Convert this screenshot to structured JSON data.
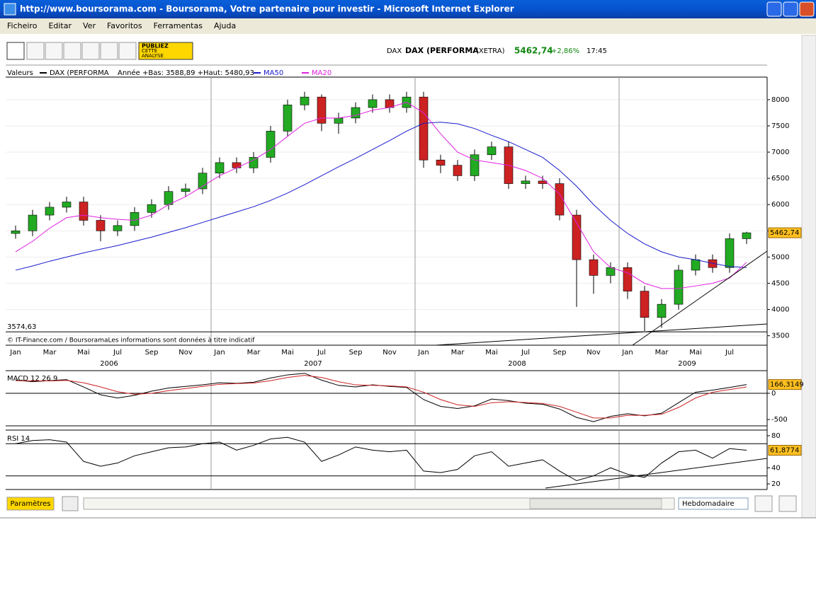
{
  "window": {
    "title": "http://www.boursorama.com - Boursorama, Votre partenaire pour investir - Microsoft Internet Explorer",
    "menu": [
      "Ficheiro",
      "Editar",
      "Ver",
      "Favoritos",
      "Ferramentas",
      "Ajuda"
    ]
  },
  "toolbar": {
    "publish": [
      "PUBLIEZ",
      "CETTE",
      "ANALYSE"
    ]
  },
  "quote": {
    "market": "DAX",
    "name": "DAX (PERFORMA",
    "exchange": "(XETRA)",
    "change": "+2,86%",
    "time": "17:45"
  },
  "footer": {
    "settings": "Paramètres",
    "period": "Hebdomadaire"
  },
  "chart_data": [
    {
      "type": "candlestick",
      "legend_title": "Valeurs",
      "name": "DAX (PERFORMA",
      "range_text": "Année +Bas: 3588,89 +Haut: 5480,93",
      "copyright": "© IT-Finance.com / BoursoramaLes informations sont données à titre indicatif",
      "x_labels": [
        "Jan",
        "Mar",
        "Mai",
        "Jul",
        "Sep",
        "Nov",
        "Jan",
        "Mar",
        "Mai",
        "Jul",
        "Sep",
        "Nov",
        "Jan",
        "Mar",
        "Mai",
        "Jul",
        "Sep",
        "Nov",
        "Jan",
        "Mar",
        "Mai",
        "Jul"
      ],
      "years": [
        "2006",
        "2007",
        "2008",
        "2009"
      ],
      "open": [
        5450,
        5500,
        5800,
        5950,
        6050,
        5700,
        5500,
        5600,
        5850,
        6000,
        6250,
        6300,
        6600,
        6800,
        6700,
        6900,
        7400,
        7900,
        8050,
        7550,
        7650,
        7850,
        8000,
        7850,
        8050,
        6850,
        6750,
        6550,
        6950,
        7100,
        6400,
        6450,
        6400,
        5800,
        4950,
        4650,
        4800,
        4350,
        3850,
        4100,
        4750,
        4950,
        4800,
        5350
      ],
      "high": [
        5600,
        5900,
        6050,
        6150,
        6150,
        5800,
        5700,
        5950,
        6100,
        6350,
        6400,
        6700,
        6900,
        6900,
        7000,
        7500,
        8000,
        8150,
        8100,
        7750,
        7950,
        8100,
        8100,
        8150,
        8150,
        6950,
        6850,
        7050,
        7200,
        7200,
        6550,
        6550,
        6500,
        5900,
        5050,
        4900,
        4900,
        4450,
        4200,
        4850,
        5050,
        5050,
        5450,
        5480
      ],
      "low": [
        5350,
        5400,
        5700,
        5850,
        5600,
        5300,
        5400,
        5500,
        5750,
        5900,
        6150,
        6200,
        6500,
        6600,
        6600,
        6800,
        7300,
        7800,
        7400,
        7350,
        7550,
        7750,
        7750,
        7750,
        6700,
        6600,
        6450,
        6450,
        6850,
        6300,
        6300,
        6300,
        5700,
        4050,
        4300,
        4500,
        4200,
        3590,
        3650,
        4000,
        4650,
        4700,
        4700,
        5250
      ],
      "close": [
        5500,
        5800,
        5950,
        6050,
        5700,
        5500,
        5600,
        5850,
        6000,
        6250,
        6300,
        6600,
        6800,
        6700,
        6900,
        7400,
        7900,
        8050,
        7550,
        7650,
        7850,
        8000,
        7850,
        8050,
        6850,
        6750,
        6550,
        6950,
        7100,
        6400,
        6450,
        6400,
        5800,
        4950,
        4650,
        4800,
        4350,
        3850,
        4100,
        4750,
        4950,
        4800,
        5350,
        5462.74
      ],
      "up_color": "#22aa22",
      "down_color": "#cc2222",
      "series": [
        {
          "name": "MA50",
          "color": "#1a1acc",
          "values": [
            4750,
            4830,
            4920,
            5000,
            5080,
            5150,
            5220,
            5300,
            5380,
            5470,
            5560,
            5660,
            5760,
            5860,
            5960,
            6080,
            6220,
            6380,
            6550,
            6720,
            6880,
            7050,
            7220,
            7400,
            7550,
            7570,
            7540,
            7450,
            7320,
            7200,
            7050,
            6900,
            6650,
            6350,
            6000,
            5700,
            5450,
            5250,
            5100,
            5000,
            4950,
            4880,
            4820,
            4800
          ]
        },
        {
          "name": "MA20",
          "color": "#e020e0",
          "values": [
            5100,
            5300,
            5550,
            5750,
            5800,
            5750,
            5720,
            5700,
            5800,
            6000,
            6150,
            6350,
            6550,
            6700,
            6850,
            7050,
            7300,
            7550,
            7650,
            7650,
            7700,
            7800,
            7850,
            7950,
            7750,
            7350,
            7000,
            6850,
            6800,
            6750,
            6650,
            6500,
            6200,
            5650,
            5100,
            4800,
            4700,
            4500,
            4400,
            4400,
            4450,
            4500,
            4600,
            4900
          ]
        }
      ],
      "last": {
        "value": 5462.74,
        "label": "5462,74"
      },
      "low_line": {
        "value": 3574.63,
        "label": "3574,63"
      },
      "ylim": [
        3320,
        8430
      ],
      "yticks": [
        3500,
        4000,
        4500,
        5000,
        5500,
        6000,
        6500,
        7000,
        7500,
        8000
      ]
    },
    {
      "type": "line",
      "title": "MACD 12 26 9",
      "series": [
        {
          "color": "#000000",
          "values": [
            250,
            220,
            240,
            260,
            120,
            -30,
            -90,
            -40,
            40,
            100,
            130,
            160,
            200,
            190,
            210,
            290,
            350,
            380,
            250,
            150,
            120,
            160,
            130,
            110,
            -120,
            -250,
            -290,
            -240,
            -110,
            -140,
            -190,
            -210,
            -300,
            -460,
            -540,
            -440,
            -390,
            -430,
            -380,
            -180,
            20,
            60,
            110,
            166.3149
          ]
        },
        {
          "color": "#cc2222",
          "values": [
            240,
            235,
            235,
            245,
            200,
            120,
            30,
            -20,
            0,
            50,
            90,
            130,
            170,
            185,
            195,
            240,
            300,
            340,
            300,
            220,
            160,
            150,
            140,
            120,
            20,
            -120,
            -220,
            -250,
            -180,
            -160,
            -175,
            -195,
            -250,
            -360,
            -470,
            -470,
            -420,
            -420,
            -400,
            -270,
            -90,
            20,
            70,
            120
          ]
        }
      ],
      "last": {
        "value": 166.3149,
        "label": "166,3149"
      },
      "ylim": [
        -620,
        430
      ],
      "yticks": [
        0,
        -500
      ]
    },
    {
      "type": "line",
      "title": "RSI 14",
      "series": [
        {
          "color": "#000000",
          "values": [
            70,
            74,
            75,
            72,
            48,
            42,
            46,
            55,
            60,
            65,
            66,
            70,
            72,
            62,
            68,
            76,
            78,
            72,
            48,
            56,
            66,
            62,
            60,
            62,
            36,
            34,
            38,
            55,
            60,
            42,
            46,
            50,
            36,
            24,
            30,
            40,
            32,
            28,
            46,
            60,
            62,
            52,
            64,
            61.8774
          ]
        }
      ],
      "levels": [
        70,
        30
      ],
      "last": {
        "value": 61.8774,
        "label": "61,8774"
      },
      "ylim": [
        13,
        87
      ],
      "yticks": [
        80,
        40,
        20
      ]
    }
  ]
}
